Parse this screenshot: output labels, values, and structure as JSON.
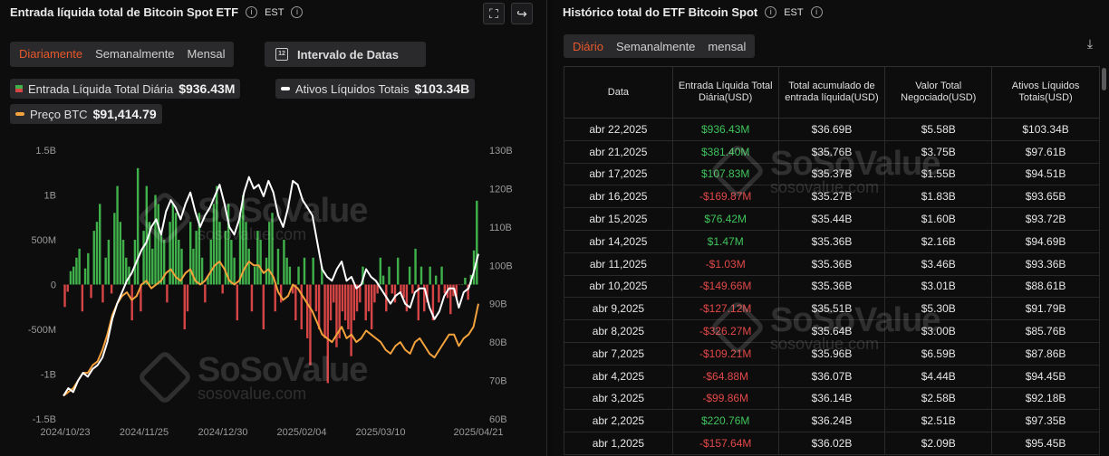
{
  "left": {
    "title": "Entrada líquida total de Bitcoin Spot ETF",
    "timezone": "EST",
    "tabs": [
      {
        "label": "Diariamente",
        "active": true
      },
      {
        "label": "Semanalmente",
        "active": false
      },
      {
        "label": "Mensal",
        "active": false
      }
    ],
    "date_button": "Intervalo de Datas",
    "calendar_day": "12",
    "legend": {
      "inflow_label": "Entrada Líquida Total Diária",
      "inflow_value": "$936.43M",
      "assets_label": "Ativos Líquidos Totais",
      "assets_value": "$103.34B",
      "btc_label": "Preço BTC",
      "btc_value": "$91,414.79"
    }
  },
  "right": {
    "title": "Histórico total do ETF Bitcoin Spot",
    "timezone": "EST",
    "tabs": [
      {
        "label": "Diário",
        "active": true
      },
      {
        "label": "Semanalmente",
        "active": false
      },
      {
        "label": "mensal",
        "active": false
      }
    ],
    "headers": [
      "Data",
      "Entrada Líquida Total Diária(USD)",
      "Total acumulado de entrada líquida(USD)",
      "Valor Total Negociado(USD)",
      "Ativos Líquidos Totais(USD)"
    ],
    "rows": [
      [
        "abr 22,2025",
        "$936.43M",
        "$36.69B",
        "$5.58B",
        "$103.34B"
      ],
      [
        "abr 21,2025",
        "$381.40M",
        "$35.76B",
        "$3.75B",
        "$97.61B"
      ],
      [
        "abr 17,2025",
        "$107.83M",
        "$35.37B",
        "$1.55B",
        "$94.51B"
      ],
      [
        "abr 16,2025",
        "-$169.87M",
        "$35.27B",
        "$1.83B",
        "$93.65B"
      ],
      [
        "abr 15,2025",
        "$76.42M",
        "$35.44B",
        "$1.60B",
        "$93.72B"
      ],
      [
        "abr 14,2025",
        "$1.47M",
        "$35.36B",
        "$2.16B",
        "$94.69B"
      ],
      [
        "abr 11,2025",
        "-$1.03M",
        "$35.36B",
        "$3.46B",
        "$93.36B"
      ],
      [
        "abr 10,2025",
        "-$149.66M",
        "$35.36B",
        "$3.01B",
        "$88.61B"
      ],
      [
        "abr 9,2025",
        "-$127.12M",
        "$35.51B",
        "$5.30B",
        "$91.79B"
      ],
      [
        "abr 8,2025",
        "-$326.27M",
        "$35.64B",
        "$3.00B",
        "$85.76B"
      ],
      [
        "abr 7,2025",
        "-$109.21M",
        "$35.96B",
        "$6.59B",
        "$87.86B"
      ],
      [
        "abr 4,2025",
        "-$64.88M",
        "$36.07B",
        "$4.44B",
        "$94.45B"
      ],
      [
        "abr 3,2025",
        "-$99.86M",
        "$36.14B",
        "$2.58B",
        "$92.18B"
      ],
      [
        "abr 2,2025",
        "$220.76M",
        "$36.24B",
        "$2.51B",
        "$97.35B"
      ],
      [
        "abr 1,2025",
        "-$157.64M",
        "$36.02B",
        "$2.09B",
        "$95.45B"
      ]
    ]
  },
  "watermark": {
    "brand": "SoSoValue",
    "url": "sosovalue.com"
  },
  "colors": {
    "positive": "#3fb04a",
    "negative": "#d64545",
    "assets_line": "#ffffff",
    "btc_line": "#f4a23c",
    "accent": "#e8582a"
  },
  "chart_data": {
    "type": "bar",
    "x_tick_labels": [
      "2024/10/23",
      "2024/11/25",
      "2024/12/30",
      "2025/02/04",
      "2025/03/10",
      "2025/04/21"
    ],
    "left_axis": {
      "ticks": [
        "1.5B",
        "1B",
        "500M",
        "0",
        "-500M",
        "-1B",
        "-1.5B"
      ],
      "ylim": [
        -1500,
        1500
      ],
      "unit": "M"
    },
    "right_axis": {
      "ticks": [
        "130B",
        "120B",
        "110B",
        "100B",
        "90B",
        "80B",
        "70B",
        "60B"
      ],
      "ylim": [
        60,
        130
      ],
      "unit": "B"
    },
    "series": [
      {
        "name": "Entrada Líquida Total Diária",
        "type": "bar",
        "axis": "left",
        "values": [
          -250,
          -80,
          150,
          200,
          300,
          400,
          -300,
          180,
          350,
          -150,
          600,
          700,
          900,
          -200,
          300,
          500,
          -100,
          800,
          1100,
          700,
          500,
          300,
          200,
          -400,
          500,
          1300,
          -300,
          600,
          1100,
          700,
          400,
          1000,
          900,
          600,
          500,
          -200,
          700,
          900,
          800,
          500,
          400,
          -500,
          -300,
          700,
          400,
          600,
          800,
          300,
          -200,
          100,
          500,
          900,
          1100,
          700,
          -100,
          600,
          900,
          500,
          300,
          -400,
          800,
          1000,
          700,
          400,
          -300,
          200,
          600,
          500,
          -500,
          300,
          700,
          800,
          -300,
          400,
          -200,
          500,
          300,
          200,
          -100,
          -400,
          200,
          -500,
          300,
          -600,
          -900,
          300,
          -300,
          -500,
          200,
          -600,
          -1100,
          -400,
          -200,
          -700,
          -600,
          -300,
          -400,
          -500,
          -800,
          -400,
          -300,
          -200,
          200,
          -400,
          -300,
          -500,
          -200,
          -100,
          300,
          100,
          -300,
          200,
          -100,
          -200,
          300,
          -100,
          -150,
          -300,
          200,
          -100,
          400,
          -400,
          200,
          -300,
          -200,
          200,
          -400,
          100,
          -200,
          200,
          -100,
          -150,
          -330,
          -130,
          -150,
          -1,
          1,
          76,
          -170,
          108,
          381,
          936
        ]
      },
      {
        "name": "Ativos Líquidos Totais",
        "type": "line",
        "axis": "right",
        "values": [
          66,
          68,
          67,
          70,
          72,
          71,
          73,
          74,
          76,
          80,
          86,
          90,
          93,
          96,
          98,
          101,
          104,
          106,
          110,
          112,
          108,
          114,
          117,
          115,
          112,
          116,
          119,
          114,
          110,
          113,
          115,
          118,
          121,
          116,
          110,
          108,
          112,
          119,
          123,
          120,
          121,
          118,
          122,
          119,
          113,
          110,
          115,
          122,
          121,
          117,
          115,
          113,
          106,
          99,
          97,
          96,
          99,
          101,
          96,
          97,
          94,
          95,
          99,
          97,
          96,
          94,
          92,
          90,
          92,
          93,
          90,
          89,
          93,
          94,
          94,
          89,
          86,
          88,
          92,
          94,
          94,
          89,
          93,
          94,
          98,
          103
        ]
      },
      {
        "name": "Preço BTC",
        "type": "line",
        "axis": "right",
        "values": [
          66,
          67,
          68,
          70,
          72,
          72,
          74,
          75,
          78,
          82,
          87,
          90,
          92,
          93,
          91,
          92,
          95,
          96,
          94,
          95,
          96,
          98,
          99,
          97,
          96,
          98,
          99,
          96,
          95,
          96,
          98,
          100,
          101,
          99,
          96,
          95,
          96,
          99,
          101,
          100,
          100,
          98,
          99,
          97,
          93,
          91,
          92,
          95,
          94,
          92,
          90,
          88,
          85,
          82,
          81,
          80,
          82,
          84,
          81,
          82,
          80,
          81,
          83,
          82,
          81,
          80,
          78,
          77,
          79,
          80,
          78,
          77,
          80,
          81,
          79,
          77,
          76,
          78,
          80,
          82,
          82,
          79,
          81,
          82,
          84,
          90
        ]
      }
    ]
  }
}
